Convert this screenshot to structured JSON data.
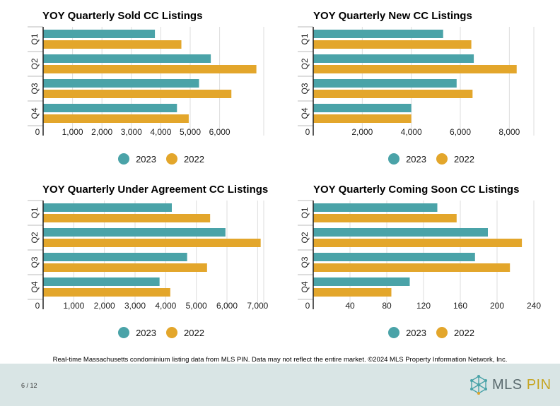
{
  "colors": {
    "series_2023": "#4aa3a8",
    "series_2022": "#e3a62b",
    "axis": "#222222",
    "grid": "#dddddd"
  },
  "chart_data": [
    {
      "type": "bar",
      "orientation": "horizontal",
      "title": "YOY Quarterly Sold CC Listings",
      "categories": [
        "Q1",
        "Q2",
        "Q3",
        "Q4"
      ],
      "series": [
        {
          "name": "2023",
          "values": [
            3800,
            5700,
            5300,
            4550
          ]
        },
        {
          "name": "2022",
          "values": [
            4700,
            7250,
            6400,
            4950
          ]
        }
      ],
      "xlim": [
        0,
        7500
      ],
      "xticks": [
        0,
        1000,
        2000,
        3000,
        4000,
        5000,
        6000
      ],
      "tick_labels": [
        "0",
        "1,000",
        "2,000",
        "3,000",
        "4,000",
        "5,000",
        "6,000"
      ],
      "grid": true,
      "legend_position": "bottom"
    },
    {
      "type": "bar",
      "orientation": "horizontal",
      "title": "YOY Quarterly New CC Listings",
      "categories": [
        "Q1",
        "Q2",
        "Q3",
        "Q4"
      ],
      "series": [
        {
          "name": "2023",
          "values": [
            5300,
            6550,
            5850,
            4000
          ]
        },
        {
          "name": "2022",
          "values": [
            6450,
            8300,
            6500,
            4000
          ]
        }
      ],
      "xlim": [
        0,
        9000
      ],
      "xticks": [
        0,
        2000,
        4000,
        6000,
        8000
      ],
      "tick_labels": [
        "0",
        "2,000",
        "4,000",
        "6,000",
        "8,000"
      ],
      "grid": true,
      "legend_position": "bottom"
    },
    {
      "type": "bar",
      "orientation": "horizontal",
      "title": "YOY Quarterly Under Agreement CC Listings",
      "categories": [
        "Q1",
        "Q2",
        "Q3",
        "Q4"
      ],
      "series": [
        {
          "name": "2023",
          "values": [
            4200,
            5950,
            4700,
            3800
          ]
        },
        {
          "name": "2022",
          "values": [
            5450,
            7100,
            5350,
            4150
          ]
        }
      ],
      "xlim": [
        0,
        7200
      ],
      "xticks": [
        0,
        1000,
        2000,
        3000,
        4000,
        5000,
        6000,
        7000
      ],
      "tick_labels": [
        "0",
        "1,000",
        "2,000",
        "3,000",
        "4,000",
        "5,000",
        "6,000",
        "7,000"
      ],
      "grid": true,
      "legend_position": "bottom"
    },
    {
      "type": "bar",
      "orientation": "horizontal",
      "title": "YOY Quarterly Coming Soon CC Listings",
      "categories": [
        "Q1",
        "Q2",
        "Q3",
        "Q4"
      ],
      "series": [
        {
          "name": "2023",
          "values": [
            135,
            190,
            176,
            105
          ]
        },
        {
          "name": "2022",
          "values": [
            156,
            227,
            214,
            85
          ]
        }
      ],
      "xlim": [
        0,
        240
      ],
      "xticks": [
        0,
        40,
        80,
        120,
        160,
        200,
        240
      ],
      "tick_labels": [
        "0",
        "40",
        "80",
        "120",
        "160",
        "200",
        "240"
      ],
      "grid": true,
      "legend_position": "bottom"
    }
  ],
  "footnote": "Real-time Massachusetts condominium listing data from MLS PIN. Data may not reflect the entire market. ©2024 MLS Property Information Network, Inc.",
  "page_number": "6 / 12",
  "brand": {
    "name_main": "MLS ",
    "name_accent": "PIN",
    "logo_icon": "network-hexagon-icon"
  }
}
